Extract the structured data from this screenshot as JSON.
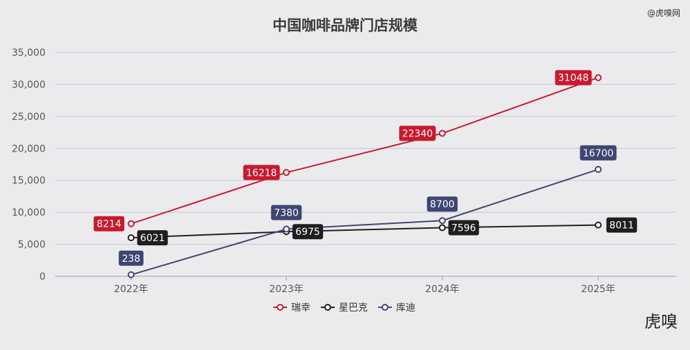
{
  "watermark": "@虎嗅网",
  "logo": "虎嗅",
  "chart_data": {
    "type": "line",
    "title": "中国咖啡品牌门店规模",
    "categories": [
      "2022年",
      "2023年",
      "2024年",
      "2025年"
    ],
    "ylim": [
      0,
      35000
    ],
    "yticks": [
      0,
      5000,
      10000,
      15000,
      20000,
      25000,
      30000,
      35000
    ],
    "ytick_labels": [
      "0",
      "5,000",
      "10,000",
      "15,000",
      "20,000",
      "25,000",
      "30,000",
      "35,000"
    ],
    "grid": true,
    "legend_position": "bottom",
    "series": [
      {
        "name": "瑞幸",
        "color": "#c8192e",
        "values": [
          8214,
          16218,
          22340,
          31048
        ],
        "labels": [
          "8214",
          "16218",
          "22340",
          "31048"
        ]
      },
      {
        "name": "星巴克",
        "color": "#1f1f1f",
        "values": [
          6021,
          6975,
          7596,
          8011
        ],
        "labels": [
          "6021",
          "6975",
          "7596",
          "8011"
        ]
      },
      {
        "name": "库迪",
        "color": "#3f4673",
        "values": [
          238,
          7380,
          8700,
          16700
        ],
        "labels": [
          "238",
          "7380",
          "8700",
          "16700"
        ]
      }
    ]
  }
}
